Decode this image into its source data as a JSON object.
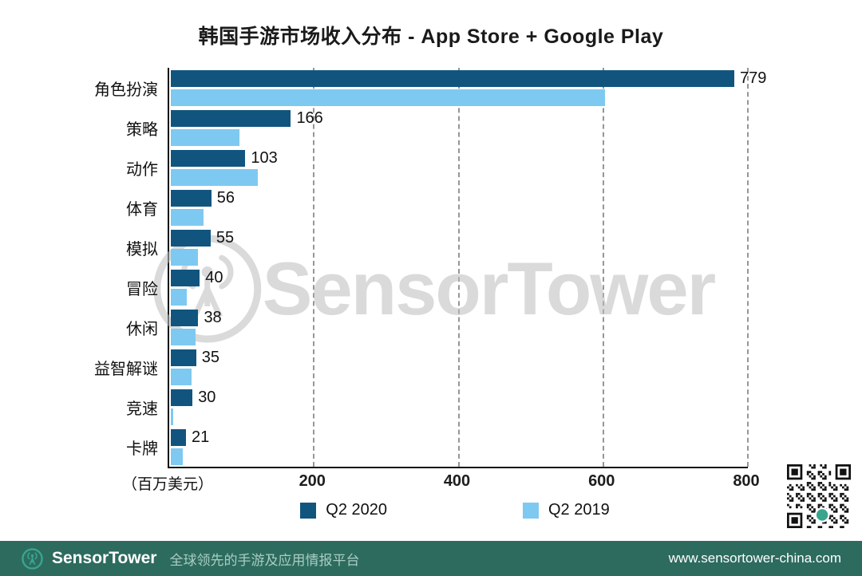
{
  "chart_data": {
    "type": "bar",
    "orientation": "horizontal",
    "title": "韩国手游市场收入分布 - App Store + Google Play",
    "unit_label": "（百万美元）",
    "categories": [
      "角色扮演",
      "策略",
      "动作",
      "体育",
      "模拟",
      "冒险",
      "休闲",
      "益智解谜",
      "竞速",
      "卡牌"
    ],
    "series": [
      {
        "name": "Q2 2020",
        "color": "#11557F",
        "values": [
          779,
          166,
          103,
          56,
          55,
          40,
          38,
          35,
          30,
          21
        ],
        "value_labels_shown": true
      },
      {
        "name": "Q2 2019",
        "color": "#7EC9F1",
        "values": [
          600,
          95,
          120,
          45,
          38,
          22,
          34,
          29,
          3,
          17
        ],
        "value_labels_shown": false
      }
    ],
    "xlim": [
      0,
      800
    ],
    "xticks": [
      200,
      400,
      600,
      800
    ],
    "grid": "vertical-dashed",
    "legend_position": "bottom"
  },
  "watermark": {
    "text": "SensorTower"
  },
  "footer": {
    "brand": "SensorTower",
    "tagline": "全球领先的手游及应用情报平台",
    "url": "www.sensortower-china.com"
  },
  "colors": {
    "q2_2020": "#11557F",
    "q2_2019": "#7EC9F1",
    "footer_bg": "#2d6b5f",
    "accent_teal": "#38a58c",
    "watermark_gray": "#bdbdbd"
  }
}
